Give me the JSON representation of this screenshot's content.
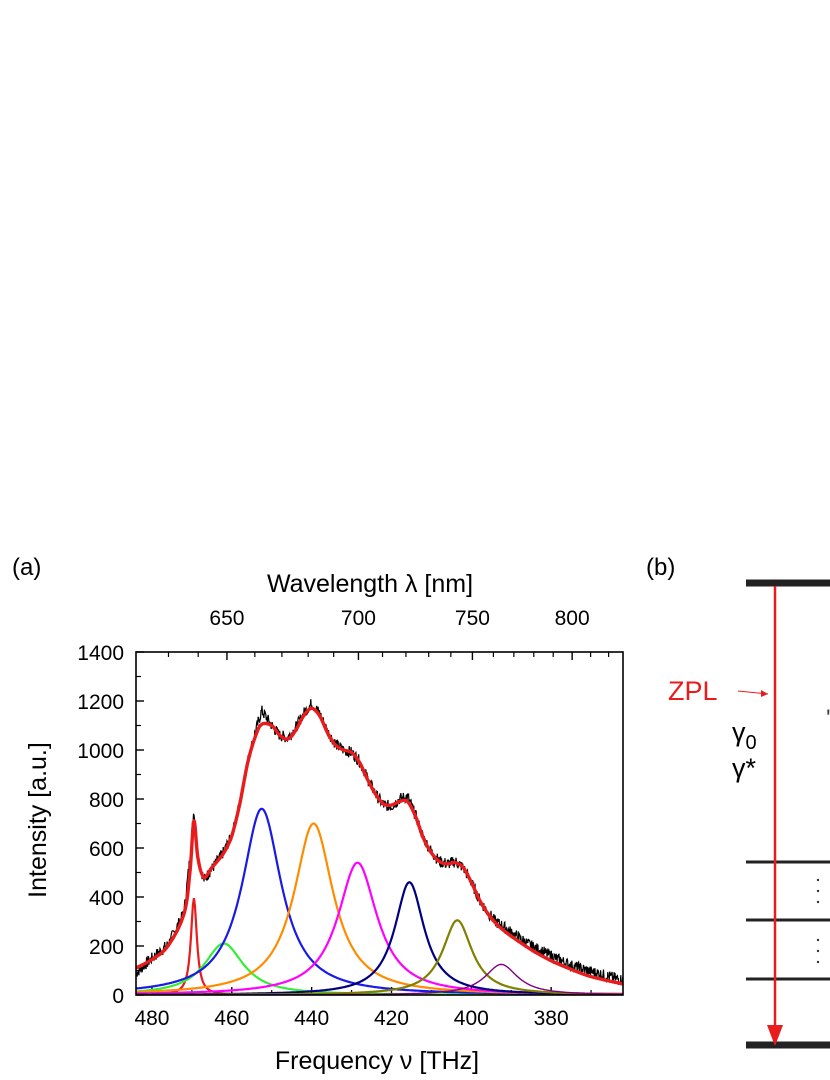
{
  "panel_a": {
    "label": "(a)",
    "top_axis_label": "Wavelength λ [nm]",
    "top_ticks": [
      "650",
      "700",
      "750",
      "800"
    ],
    "x_axis_label": "Frequency ν [THz]",
    "y_axis_label": "Intensity [a.u.]"
  },
  "panel_b": {
    "label": "(b)",
    "zpl_label": "ZPL",
    "gamma0": "γ",
    "gamma0_sub": "0",
    "gamma_star": "γ*"
  },
  "colors": {
    "data": "#000000",
    "fit": "#e81c1c",
    "zpl_peak": "#e81c1c",
    "peak_green": "#33ee33",
    "peak_blue": "#1a1ae6",
    "peak_orange": "#ff8c00",
    "peak_magenta": "#ff00ff",
    "peak_navy": "#000080",
    "peak_olive": "#808000",
    "peak_purple": "#800080"
  },
  "chart_data": {
    "type": "line",
    "title": "",
    "xlabel": "Frequency ν [THz]",
    "ylabel": "Intensity [a.u.]",
    "top_xlabel": "Wavelength λ [nm]",
    "xlim": [
      484,
      362
    ],
    "ylim": [
      0,
      1400
    ],
    "x_ticks": [
      480,
      460,
      440,
      420,
      400,
      380
    ],
    "y_ticks": [
      0,
      200,
      400,
      600,
      800,
      1000,
      1200,
      1400
    ],
    "top_ticks_nm": [
      650,
      700,
      750,
      800
    ],
    "top_minor_ticks_nm": [
      630,
      640,
      660,
      670,
      680,
      690,
      710,
      720,
      730,
      740,
      760,
      770,
      780,
      790,
      810,
      820,
      830
    ],
    "grid": false,
    "peaks": [
      {
        "color_key": "zpl_peak",
        "center": 469.5,
        "amplitude": 395,
        "width": 0.9
      },
      {
        "color_key": "peak_green",
        "center": 462,
        "amplitude": 210,
        "width": 6
      },
      {
        "color_key": "peak_blue",
        "center": 452.5,
        "amplitude": 760,
        "width": 6
      },
      {
        "color_key": "peak_orange",
        "center": 439.5,
        "amplitude": 700,
        "width": 6
      },
      {
        "color_key": "peak_magenta",
        "center": 428.5,
        "amplitude": 540,
        "width": 6
      },
      {
        "color_key": "peak_navy",
        "center": 415.5,
        "amplitude": 460,
        "width": 4.5
      },
      {
        "color_key": "peak_olive",
        "center": 403.5,
        "amplitude": 305,
        "width": 4.5
      },
      {
        "color_key": "peak_purple",
        "center": 392.5,
        "amplitude": 125,
        "width": 5
      }
    ],
    "fit_curve": {
      "x": [
        484,
        480,
        476,
        472,
        470.5,
        469.5,
        468.5,
        467,
        465,
        462,
        460,
        458,
        456,
        454,
        452.5,
        450,
        448,
        446,
        444,
        442,
        440,
        438,
        436,
        434,
        432,
        430,
        428,
        426,
        424,
        422,
        420,
        418,
        416,
        414,
        412,
        410,
        408,
        406,
        404,
        402,
        400,
        398,
        396,
        394,
        392,
        390,
        385,
        380,
        375,
        370,
        362
      ],
      "y": [
        110,
        145,
        200,
        330,
        500,
        710,
        560,
        480,
        520,
        580,
        650,
        780,
        950,
        1060,
        1105,
        1100,
        1060,
        1045,
        1080,
        1140,
        1170,
        1140,
        1070,
        1020,
        1000,
        990,
        950,
        880,
        820,
        780,
        775,
        790,
        790,
        730,
        640,
        580,
        545,
        535,
        540,
        520,
        460,
        390,
        335,
        295,
        265,
        240,
        185,
        140,
        105,
        75,
        45
      ]
    },
    "data_trace": {
      "note_free": true,
      "x": [
        484,
        480,
        476,
        472,
        470.5,
        469.5,
        468.5,
        467,
        465,
        462,
        460,
        458,
        456,
        454,
        452.5,
        450,
        448,
        446,
        444,
        442,
        440,
        438,
        436,
        434,
        432,
        430,
        428,
        426,
        424,
        422,
        420,
        418,
        416,
        414,
        412,
        410,
        408,
        406,
        404,
        402,
        400,
        398,
        396,
        394,
        392,
        390,
        385,
        380,
        375,
        370,
        362
      ],
      "y": [
        90,
        150,
        205,
        335,
        560,
        760,
        560,
        470,
        515,
        585,
        650,
        785,
        955,
        1080,
        1160,
        1100,
        1060,
        1050,
        1090,
        1150,
        1190,
        1150,
        1075,
        1025,
        1000,
        990,
        955,
        885,
        820,
        775,
        770,
        800,
        810,
        735,
        640,
        585,
        545,
        535,
        545,
        520,
        460,
        390,
        340,
        300,
        280,
        255,
        200,
        160,
        120,
        95,
        60
      ]
    }
  }
}
